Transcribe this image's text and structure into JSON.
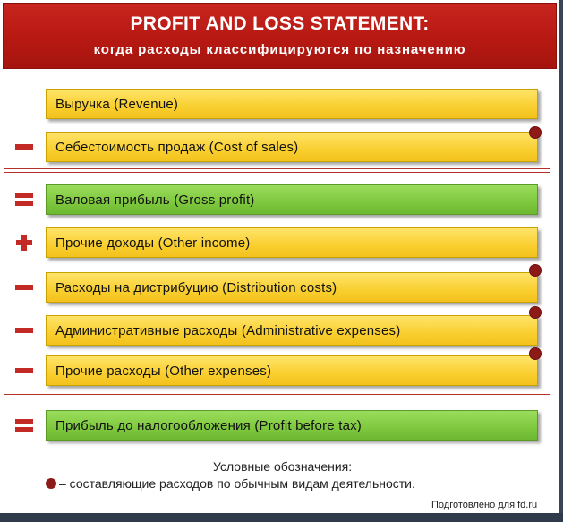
{
  "header": {
    "title": "PROFIT AND LOSS STATEMENT:",
    "subtitle": "когда расходы классифицируются по назначению"
  },
  "rows": [
    {
      "label": "Выручка (Revenue)",
      "operator": "none",
      "color": "yellow",
      "marker": false
    },
    {
      "label": "Себестоимость продаж (Cost of sales)",
      "operator": "minus",
      "color": "yellow",
      "marker": true
    },
    {
      "label": "Валовая прибыль (Gross profit)",
      "operator": "equals",
      "color": "green",
      "marker": false
    },
    {
      "label": "Прочие доходы (Other income)",
      "operator": "plus",
      "color": "yellow",
      "marker": false
    },
    {
      "label": "Расходы на дистрибуцию (Distribution costs)",
      "operator": "minus",
      "color": "yellow",
      "marker": true
    },
    {
      "label": "Административные расходы (Administrative expenses)",
      "operator": "minus",
      "color": "yellow",
      "marker": true
    },
    {
      "label": "Прочие расходы (Other expenses)",
      "operator": "minus",
      "color": "yellow",
      "marker": true
    },
    {
      "label": "Прибыль до налогообложения (Profit before tax)",
      "operator": "equals",
      "color": "green",
      "marker": false
    }
  ],
  "legend": {
    "title": "Условные обозначения:",
    "text": "– составляющие расходов по обычным видам деятельности."
  },
  "credit": "Подготовлено для fd.ru",
  "colors": {
    "header_red": "#b71912",
    "yellow_bar": "#f9cf2f",
    "green_bar": "#7ec83e",
    "operator_red": "#c32a25",
    "marker_dark_red": "#8e1a18"
  }
}
